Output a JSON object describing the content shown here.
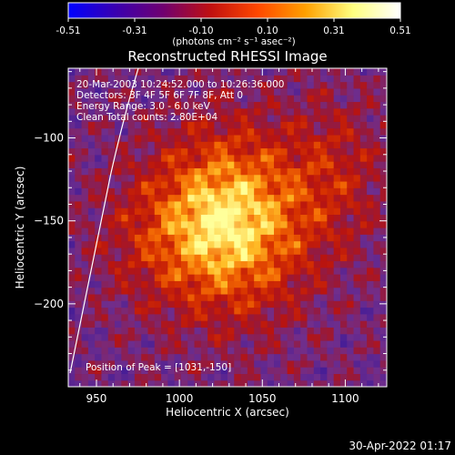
{
  "chart_data": {
    "type": "heatmap",
    "title": "Reconstructed RHESSI Image",
    "xlabel": "Heliocentric X (arcsec)",
    "ylabel": "Heliocentric Y (arcsec)",
    "xlim": [
      933,
      1125
    ],
    "ylim": [
      -250,
      -58
    ],
    "x_ticks": [
      950,
      1000,
      1050,
      1100
    ],
    "y_ticks": [
      -100,
      -150,
      -200
    ],
    "colorbar": {
      "range": [
        -0.51,
        0.51
      ],
      "ticks": [
        "-0.51",
        "-0.31",
        "-0.10",
        "0.10",
        "0.31",
        "0.51"
      ],
      "unit_label": "(photons cm⁻² s⁻¹ asec⁻²)",
      "colors": [
        "#0000ff",
        "#3a00b0",
        "#700070",
        "#c01010",
        "#ff4800",
        "#ffa000",
        "#ffff80",
        "#ffffff"
      ]
    },
    "annotations": [
      "20-Mar-2003 10:24:52.000 to 10:26:36.000",
      "Detectors: 3F 4F 5F 6F 7F 8F, Att 0",
      "Energy Range: 3.0 - 6.0 keV",
      "Clean    Total counts: 2.80E+04"
    ],
    "peak_label": "Position of Peak = [1031,-150]",
    "peak": [
      1031,
      -150
    ],
    "timestamp": "30-Apr-2022 01:17"
  }
}
